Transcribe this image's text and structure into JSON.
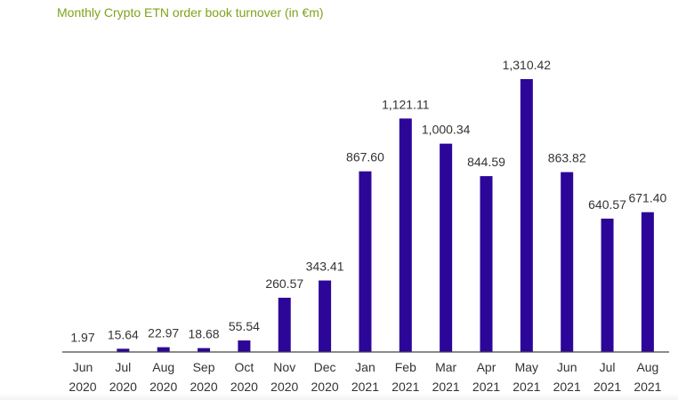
{
  "chart_data": {
    "type": "bar",
    "title": "Monthly Crypto ETN order book turnover (in €m)",
    "xlabel": "",
    "ylabel": "",
    "categories": [
      [
        "Jun",
        "2020"
      ],
      [
        "Jul",
        "2020"
      ],
      [
        "Aug",
        "2020"
      ],
      [
        "Sep",
        "2020"
      ],
      [
        "Oct",
        "2020"
      ],
      [
        "Nov",
        "2020"
      ],
      [
        "Dec",
        "2020"
      ],
      [
        "Jan",
        "2021"
      ],
      [
        "Feb",
        "2021"
      ],
      [
        "Mar",
        "2021"
      ],
      [
        "Apr",
        "2021"
      ],
      [
        "May",
        "2021"
      ],
      [
        "Jun",
        "2021"
      ],
      [
        "Jul",
        "2021"
      ],
      [
        "Aug",
        "2021"
      ]
    ],
    "values": [
      1.97,
      15.64,
      22.97,
      18.68,
      55.54,
      260.57,
      343.41,
      867.6,
      1121.11,
      1000.34,
      844.59,
      1310.42,
      863.82,
      640.57,
      671.4
    ],
    "value_labels": [
      "1.97",
      "15.64",
      "22.97",
      "18.68",
      "55.54",
      "260.57",
      "343.41",
      "867.60",
      "1,121.11",
      "1,000.34",
      "844.59",
      "1,310.42",
      "863.82",
      "640.57",
      "671.40"
    ],
    "ylim": [
      0,
      1310.42
    ],
    "grid": false,
    "legend": "none",
    "colors": {
      "bar": "#2c0599",
      "title": "#7fa31a",
      "text": "#333333",
      "axis": "#444444"
    }
  }
}
